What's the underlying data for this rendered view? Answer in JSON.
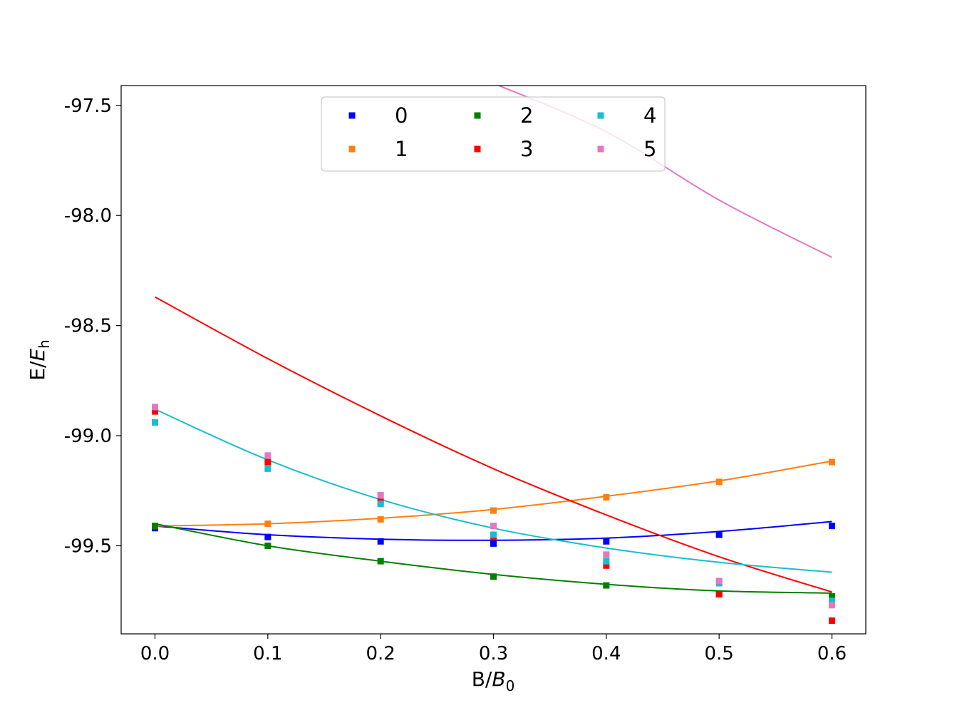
{
  "chart_data": {
    "type": "scatter",
    "title": "",
    "xlabel": "B/",
    "xlabel_sub_symbol": "B",
    "xlabel_sub": "0",
    "ylabel": "E/",
    "ylabel_sub_symbol": "E",
    "ylabel_sub": "h",
    "xlim": [
      -0.03,
      0.63
    ],
    "ylim": [
      -99.9,
      -97.41
    ],
    "x_ticks": [
      0.0,
      0.1,
      0.2,
      0.3,
      0.4,
      0.5,
      0.6
    ],
    "x_tick_labels": [
      "0.0",
      "0.1",
      "0.2",
      "0.3",
      "0.4",
      "0.5",
      "0.6"
    ],
    "y_ticks": [
      -97.5,
      -98.0,
      -98.5,
      -99.0,
      -99.5
    ],
    "y_tick_labels": [
      "-97.5",
      "-98.0",
      "-98.5",
      "-99.0",
      "-99.5"
    ],
    "grid": false,
    "legend_position": "upper-center",
    "legend_columns": 3,
    "series": [
      {
        "name": "0",
        "color": "#0000ff",
        "points": [
          [
            0.0,
            -99.42
          ],
          [
            0.1,
            -99.46
          ],
          [
            0.2,
            -99.48
          ],
          [
            0.3,
            -99.49
          ],
          [
            0.4,
            -99.48
          ],
          [
            0.5,
            -99.45
          ],
          [
            0.6,
            -99.41
          ]
        ],
        "curve": [
          [
            0.0,
            -99.41
          ],
          [
            0.1,
            -99.45
          ],
          [
            0.2,
            -99.47
          ],
          [
            0.3,
            -99.475
          ],
          [
            0.4,
            -99.465
          ],
          [
            0.5,
            -99.435
          ],
          [
            0.6,
            -99.39
          ]
        ]
      },
      {
        "name": "1",
        "color": "#ff7f0e",
        "points": [
          [
            0.0,
            -99.41
          ],
          [
            0.1,
            -99.4
          ],
          [
            0.2,
            -99.38
          ],
          [
            0.3,
            -99.34
          ],
          [
            0.4,
            -99.28
          ],
          [
            0.5,
            -99.21
          ],
          [
            0.6,
            -99.12
          ]
        ],
        "curve": [
          [
            0.0,
            -99.41
          ],
          [
            0.1,
            -99.4
          ],
          [
            0.2,
            -99.375
          ],
          [
            0.3,
            -99.335
          ],
          [
            0.4,
            -99.275
          ],
          [
            0.5,
            -99.205
          ],
          [
            0.6,
            -99.115
          ]
        ]
      },
      {
        "name": "2",
        "color": "#008000",
        "points": [
          [
            0.0,
            -99.41
          ],
          [
            0.1,
            -99.5
          ],
          [
            0.2,
            -99.57
          ],
          [
            0.3,
            -99.64
          ],
          [
            0.4,
            -99.68
          ],
          [
            0.5,
            -99.72
          ],
          [
            0.6,
            -99.73
          ]
        ],
        "curve": [
          [
            0.0,
            -99.4
          ],
          [
            0.1,
            -99.5
          ],
          [
            0.2,
            -99.57
          ],
          [
            0.3,
            -99.63
          ],
          [
            0.4,
            -99.675
          ],
          [
            0.5,
            -99.705
          ],
          [
            0.6,
            -99.715
          ]
        ]
      },
      {
        "name": "3",
        "color": "#ff0000",
        "points": [
          [
            0.0,
            -98.89
          ],
          [
            0.1,
            -99.12
          ],
          [
            0.2,
            -99.3
          ],
          [
            0.3,
            -99.46
          ],
          [
            0.4,
            -99.59
          ],
          [
            0.5,
            -99.72
          ],
          [
            0.6,
            -99.84
          ]
        ],
        "curve": [
          [
            0.0,
            -98.37
          ],
          [
            0.1,
            -98.65
          ],
          [
            0.2,
            -98.91
          ],
          [
            0.3,
            -99.15
          ],
          [
            0.4,
            -99.36
          ],
          [
            0.5,
            -99.55
          ],
          [
            0.6,
            -99.71
          ]
        ]
      },
      {
        "name": "4",
        "color": "#17becf",
        "points": [
          [
            0.0,
            -98.94
          ],
          [
            0.1,
            -99.15
          ],
          [
            0.2,
            -99.31
          ],
          [
            0.3,
            -99.45
          ],
          [
            0.4,
            -99.57
          ],
          [
            0.5,
            -99.67
          ],
          [
            0.6,
            -99.75
          ]
        ],
        "curve": [
          [
            0.0,
            -98.88
          ],
          [
            0.1,
            -99.11
          ],
          [
            0.2,
            -99.29
          ],
          [
            0.3,
            -99.42
          ],
          [
            0.4,
            -99.51
          ],
          [
            0.5,
            -99.575
          ],
          [
            0.6,
            -99.62
          ]
        ]
      },
      {
        "name": "5",
        "color": "#e377c2",
        "points": [
          [
            0.0,
            -98.87
          ],
          [
            0.1,
            -99.09
          ],
          [
            0.2,
            -99.27
          ],
          [
            0.3,
            -99.41
          ],
          [
            0.4,
            -99.54
          ],
          [
            0.5,
            -99.66
          ],
          [
            0.6,
            -99.77
          ]
        ],
        "curve": [
          [
            0.3,
            -97.4
          ],
          [
            0.4,
            -97.62
          ],
          [
            0.5,
            -97.93
          ],
          [
            0.6,
            -98.19
          ]
        ]
      }
    ]
  }
}
